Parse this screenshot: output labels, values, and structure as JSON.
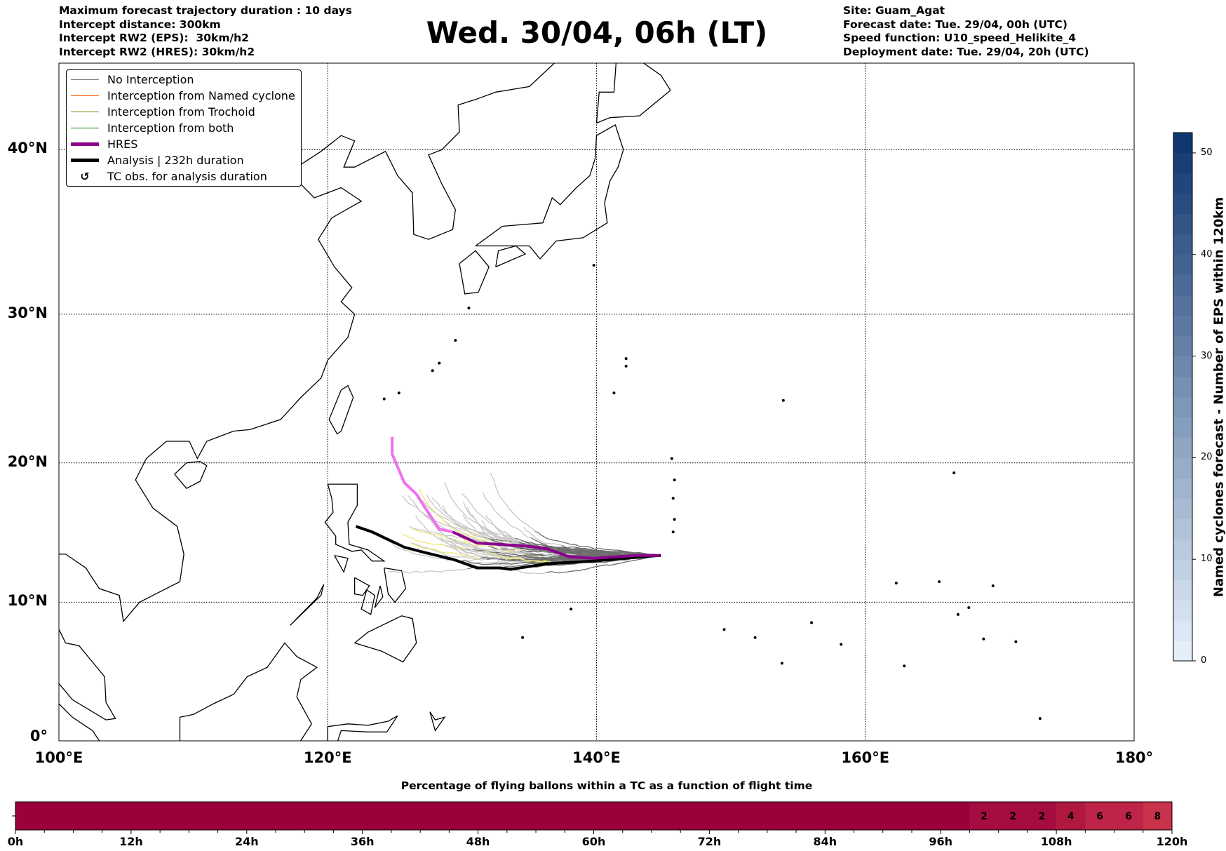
{
  "header": {
    "left": [
      "Maximum forecast trajectory duration : 10 days",
      "Intercept distance: 300km",
      "Intercept RW2 (EPS):  30km/h2",
      "Intercept RW2 (HRES): 30km/h2"
    ],
    "right": [
      "Site: Guam_Agat",
      "Forecast date: Tue. 29/04, 00h (UTC)",
      "Speed function: U10_speed_Helikite_4",
      "Deployment date: Tue. 29/04, 20h (UTC)"
    ],
    "title": "Wed. 30/04, 06h (LT)"
  },
  "legend": [
    {
      "label": "No Interception",
      "color": "#808080",
      "width": 1.5
    },
    {
      "label": "Interception from Named cyclone",
      "color": "#ff5a00",
      "width": 1.5
    },
    {
      "label": "Interception from Trochoid",
      "color": "#808000",
      "width": 1.5
    },
    {
      "label": "Interception from both",
      "color": "#008000",
      "width": 1.5
    },
    {
      "label": "HRES",
      "color": "#8b008b",
      "width": 5
    },
    {
      "label": "Analysis | 232h duration",
      "color": "#000000",
      "width": 5
    },
    {
      "label": "TC obs. for analysis duration",
      "symbol": "↺"
    }
  ],
  "chart_data": [
    {
      "type": "line",
      "title": "Wed. 30/04, 06h (LT)",
      "projection": "mercator",
      "xlim": [
        100,
        180
      ],
      "ylim": [
        0,
        44.7
      ],
      "x_ticks": [
        "100°E",
        "120°E",
        "140°E",
        "160°E",
        "180°"
      ],
      "x_tick_values": [
        100,
        120,
        140,
        160,
        180
      ],
      "y_ticks": [
        "0°",
        "10°N",
        "20°N",
        "30°N",
        "40°N"
      ],
      "y_tick_values": [
        0,
        10,
        20,
        30,
        40
      ],
      "grid": true,
      "legend_placement": "top-left",
      "site": {
        "name": "Guam_Agat",
        "lon": 144.7,
        "lat": 13.4
      },
      "hres_track": [
        [
          124.8,
          21.8
        ],
        [
          124.8,
          20.6
        ],
        [
          125.7,
          18.6
        ],
        [
          126.6,
          17.8
        ],
        [
          127.2,
          16.9
        ],
        [
          128.3,
          15.3
        ],
        [
          129.3,
          15.1
        ],
        [
          131.1,
          14.3
        ],
        [
          134.6,
          14.1
        ],
        [
          136.3,
          13.9
        ],
        [
          138.0,
          13.3
        ],
        [
          139.8,
          13.2
        ],
        [
          142.9,
          13.4
        ],
        [
          144.7,
          13.4
        ]
      ],
      "hres_intercepted_until_lon": 129.3,
      "analysis_track": [
        [
          122.1,
          15.5
        ],
        [
          123.3,
          15.1
        ],
        [
          125.7,
          14.0
        ],
        [
          127.3,
          13.6
        ],
        [
          129.4,
          13.1
        ],
        [
          131.1,
          12.5
        ],
        [
          132.8,
          12.5
        ],
        [
          133.6,
          12.4
        ],
        [
          136.3,
          12.8
        ],
        [
          139.8,
          13.0
        ],
        [
          143.3,
          13.3
        ],
        [
          144.7,
          13.4
        ]
      ],
      "ensemble_members": 50
    },
    {
      "type": "heatmap",
      "title": "Named cyclones forecast - Number of EPS within 120km",
      "colorbar_ticks": [
        0,
        10,
        20,
        30,
        40,
        50
      ],
      "range": [
        0,
        52
      ],
      "colors": [
        "#e3eef9",
        "#08306b"
      ]
    },
    {
      "type": "heatmap",
      "title": "Percentage of flying ballons within a TC as a function of flight time",
      "xlabel": "flight time",
      "x_ticks": [
        "0h",
        "12h",
        "24h",
        "36h",
        "48h",
        "60h",
        "72h",
        "84h",
        "96h",
        "108h",
        "120h"
      ],
      "bin_hours": 3,
      "values": [
        0,
        0,
        0,
        0,
        0,
        0,
        0,
        0,
        0,
        0,
        0,
        0,
        0,
        0,
        0,
        0,
        0,
        0,
        0,
        0,
        0,
        0,
        0,
        0,
        0,
        0,
        0,
        0,
        0,
        0,
        0,
        0,
        0,
        2,
        2,
        2,
        4,
        6,
        6,
        8
      ],
      "labels": [
        "",
        "",
        "",
        "",
        "",
        "",
        "",
        "",
        "",
        "",
        "",
        "",
        "",
        "",
        "",
        "",
        "",
        "",
        "",
        "",
        "",
        "",
        "",
        "",
        "",
        "",
        "",
        "",
        "",
        "",
        "",
        "",
        "",
        "2",
        "2",
        "2",
        "4",
        "6",
        "6",
        "8"
      ]
    }
  ]
}
